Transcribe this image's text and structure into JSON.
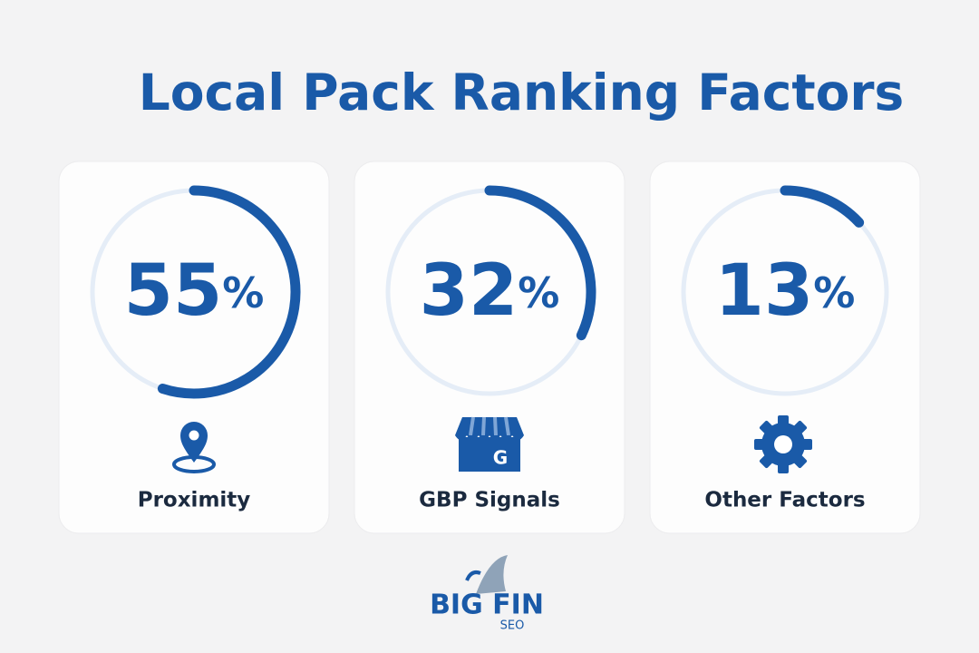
{
  "chart_data": {
    "type": "progress-ring",
    "title": "Local Pack Ranking Factors",
    "categories": [
      "Proximity",
      "GBP Signals",
      "Other Factors"
    ],
    "values": [
      55,
      32,
      13
    ],
    "unit": "%",
    "ylim": [
      0,
      100
    ],
    "color": "#1a5aa8",
    "track_color": "#e5edf7"
  },
  "logo": {
    "name": "BIG FIN",
    "tagline": "SEO"
  }
}
